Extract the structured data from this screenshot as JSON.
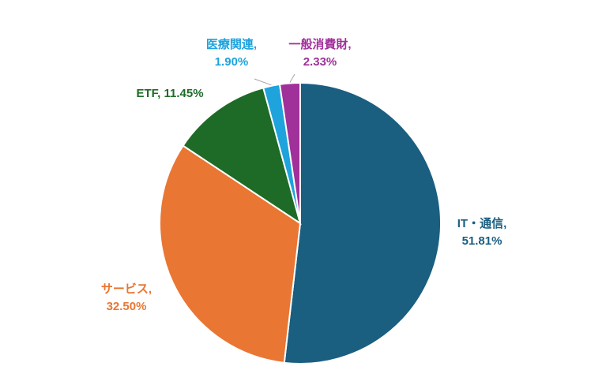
{
  "chart_data": {
    "type": "pie",
    "title": "",
    "start_angle_deg": 0,
    "direction": "clockwise",
    "slices": [
      {
        "label": "IT・通信",
        "value": 51.81,
        "value_text": "51.81%",
        "color": "#1A5E80"
      },
      {
        "label": "サービス",
        "value": 32.5,
        "value_text": "32.50%",
        "color": "#E97632"
      },
      {
        "label": "ETF",
        "value": 11.45,
        "value_text": "11.45%",
        "color": "#1E6B28"
      },
      {
        "label": "医療関連",
        "value": 1.9,
        "value_text": "1.90%",
        "color": "#1EA3DC"
      },
      {
        "label": "一般消費財",
        "value": 2.33,
        "value_text": "2.33%",
        "color": "#A0309A"
      }
    ]
  }
}
